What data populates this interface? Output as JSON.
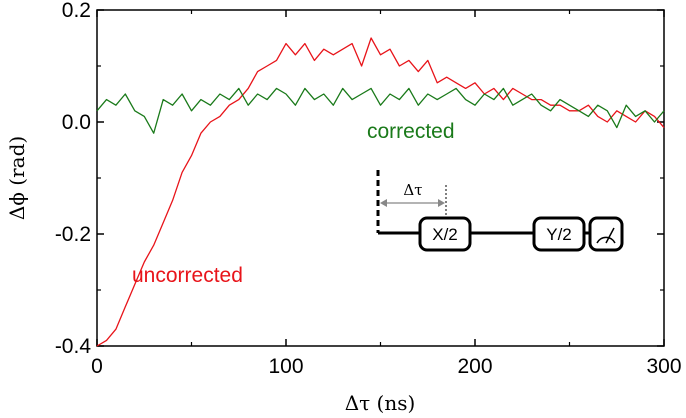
{
  "chart_data": {
    "type": "line",
    "xlabel": "Δτ (ns)",
    "ylabel": "Δϕ (rad)",
    "xlim": [
      0,
      300
    ],
    "ylim": [
      -0.4,
      0.2
    ],
    "xticks": [
      "0",
      "100",
      "200",
      "300"
    ],
    "yticks": [
      "0.2",
      "0.0",
      "-0.2",
      "-0.4"
    ],
    "grid": false,
    "series": [
      {
        "color": "#e8141a",
        "x": [
          0,
          5,
          10,
          15,
          20,
          25,
          30,
          35,
          40,
          45,
          50,
          55,
          60,
          65,
          70,
          75,
          80,
          85,
          90,
          95,
          100,
          105,
          110,
          115,
          120,
          125,
          130,
          135,
          140,
          145,
          150,
          155,
          160,
          165,
          170,
          175,
          180,
          185,
          190,
          195,
          200,
          205,
          210,
          215,
          220,
          225,
          230,
          235,
          240,
          245,
          250,
          255,
          260,
          265,
          270,
          275,
          280,
          285,
          290,
          295,
          300
        ],
        "y": [
          -0.4,
          -0.39,
          -0.37,
          -0.33,
          -0.29,
          -0.25,
          -0.22,
          -0.18,
          -0.14,
          -0.09,
          -0.06,
          -0.02,
          0.0,
          0.01,
          0.03,
          0.04,
          0.06,
          0.09,
          0.1,
          0.11,
          0.14,
          0.12,
          0.14,
          0.11,
          0.13,
          0.12,
          0.13,
          0.14,
          0.1,
          0.15,
          0.12,
          0.13,
          0.1,
          0.11,
          0.09,
          0.11,
          0.07,
          0.08,
          0.07,
          0.06,
          0.07,
          0.05,
          0.06,
          0.04,
          0.06,
          0.05,
          0.04,
          0.04,
          0.03,
          0.03,
          0.02,
          0.02,
          0.03,
          0.01,
          0.0,
          0.02,
          0.01,
          0.0,
          0.02,
          0.01,
          -0.01
        ]
      },
      {
        "color": "#1a7a1a",
        "x": [
          0,
          5,
          10,
          15,
          20,
          25,
          30,
          35,
          40,
          45,
          50,
          55,
          60,
          65,
          70,
          75,
          80,
          85,
          90,
          95,
          100,
          105,
          110,
          115,
          120,
          125,
          130,
          135,
          140,
          145,
          150,
          155,
          160,
          165,
          170,
          175,
          180,
          185,
          190,
          195,
          200,
          205,
          210,
          215,
          220,
          225,
          230,
          235,
          240,
          245,
          250,
          255,
          260,
          265,
          270,
          275,
          280,
          285,
          290,
          295,
          300
        ],
        "y": [
          0.02,
          0.04,
          0.03,
          0.05,
          0.02,
          0.01,
          -0.02,
          0.04,
          0.03,
          0.05,
          0.02,
          0.04,
          0.03,
          0.05,
          0.04,
          0.06,
          0.03,
          0.05,
          0.04,
          0.06,
          0.05,
          0.03,
          0.06,
          0.04,
          0.05,
          0.03,
          0.06,
          0.04,
          0.05,
          0.06,
          0.03,
          0.05,
          0.04,
          0.06,
          0.03,
          0.05,
          0.04,
          0.05,
          0.06,
          0.04,
          0.03,
          0.05,
          0.04,
          0.06,
          0.03,
          0.04,
          0.05,
          0.03,
          0.02,
          0.04,
          0.03,
          0.02,
          0.01,
          0.03,
          0.02,
          -0.01,
          0.03,
          0.01,
          0.02,
          0.0,
          0.02
        ]
      }
    ],
    "annotations": {
      "corrected": "corrected",
      "uncorrected": "uncorrected"
    },
    "inset": {
      "delay_label": "Δτ",
      "gate1": "X/2",
      "gate2": "Y/2",
      "meter_icon": "meter-icon"
    }
  }
}
